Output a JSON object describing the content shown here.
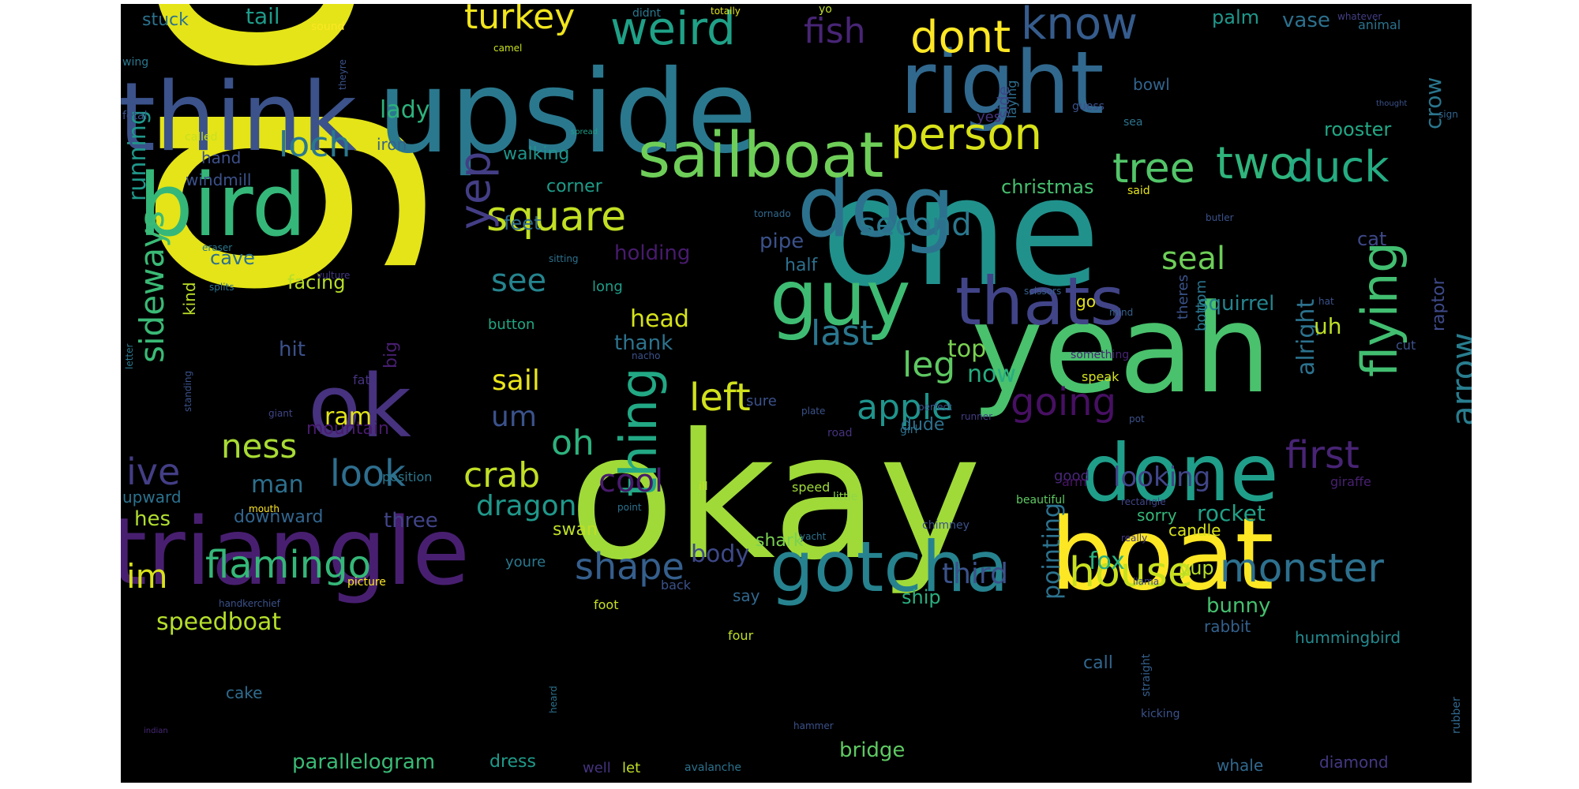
{
  "words": [
    {
      "text": "got",
      "color": "#e4e418"
    },
    {
      "text": "okay",
      "color": "#a0da39"
    },
    {
      "text": "one",
      "color": "#21918c"
    },
    {
      "text": "upside",
      "color": "#2a788e"
    },
    {
      "text": "yeah",
      "color": "#4ac16d"
    },
    {
      "text": "triangle",
      "color": "#481f70"
    },
    {
      "text": "think",
      "color": "#3b528b"
    },
    {
      "text": "right",
      "color": "#31688e"
    },
    {
      "text": "boat",
      "color": "#fde725"
    },
    {
      "text": "bird",
      "color": "#35b779"
    },
    {
      "text": "ok",
      "color": "#46327e"
    },
    {
      "text": "done",
      "color": "#1f9e89"
    },
    {
      "text": "dog",
      "color": "#2c728e"
    },
    {
      "text": "guy",
      "color": "#3fbc73"
    },
    {
      "text": "gotcha",
      "color": "#26828e"
    },
    {
      "text": "sailboat",
      "color": "#6ece58"
    },
    {
      "text": "thats",
      "color": "#414487"
    },
    {
      "text": "thing",
      "color": "#22a884"
    },
    {
      "text": "flying",
      "color": "#42be71"
    },
    {
      "text": "know",
      "color": "#365c8d"
    },
    {
      "text": "weird",
      "color": "#1fa187"
    },
    {
      "text": "dont",
      "color": "#fde725"
    },
    {
      "text": "person",
      "color": "#d8e219"
    },
    {
      "text": "square",
      "color": "#c2df23"
    },
    {
      "text": "yep",
      "color": "#433e85"
    },
    {
      "text": "turkey",
      "color": "#f1e51d"
    },
    {
      "text": "fish",
      "color": "#482576"
    },
    {
      "text": "two",
      "color": "#2fb47c"
    },
    {
      "text": "duck",
      "color": "#25ac82"
    },
    {
      "text": "tree",
      "color": "#52c569"
    },
    {
      "text": "loch",
      "color": "#2a788e"
    },
    {
      "text": "arrow",
      "color": "#287d8e"
    },
    {
      "text": "monster",
      "color": "#2d708e"
    },
    {
      "text": "house",
      "color": "#c8e020"
    },
    {
      "text": "apple",
      "color": "#1f948c"
    },
    {
      "text": "going",
      "color": "#471063"
    },
    {
      "text": "first",
      "color": "#482475"
    },
    {
      "text": "flamingo",
      "color": "#35b779"
    },
    {
      "text": "shape",
      "color": "#355f8d"
    },
    {
      "text": "look",
      "color": "#2e6e8e"
    },
    {
      "text": "crab",
      "color": "#c0df25"
    },
    {
      "text": "left",
      "color": "#d0e11c"
    },
    {
      "text": "last",
      "color": "#2a768e"
    },
    {
      "text": "leg",
      "color": "#5ec962"
    },
    {
      "text": "sideways",
      "color": "#3aba76"
    },
    {
      "text": "ness",
      "color": "#a8db34"
    },
    {
      "text": "ive",
      "color": "#433e85"
    },
    {
      "text": "im",
      "color": "#d8e219"
    },
    {
      "text": "cool",
      "color": "#481a6c"
    },
    {
      "text": "oh",
      "color": "#2db27d"
    },
    {
      "text": "seal",
      "color": "#6ece58"
    },
    {
      "text": "second",
      "color": "#2a788e"
    },
    {
      "text": "see",
      "color": "#25848e"
    },
    {
      "text": "sail",
      "color": "#eae51a"
    },
    {
      "text": "um",
      "color": "#3b528b"
    },
    {
      "text": "dragon",
      "color": "#1f988b"
    },
    {
      "text": "body",
      "color": "#3e4989"
    },
    {
      "text": "third",
      "color": "#3b528b"
    },
    {
      "text": "looking",
      "color": "#404688"
    },
    {
      "text": "alright",
      "color": "#2c728e"
    },
    {
      "text": "uh",
      "color": "#bddf26"
    },
    {
      "text": "running",
      "color": "#1f988b"
    },
    {
      "text": "rocket",
      "color": "#1fa187"
    },
    {
      "text": "speedboat",
      "color": "#b5de2b"
    },
    {
      "text": "top",
      "color": "#7ad151"
    },
    {
      "text": "now",
      "color": "#27ad81"
    },
    {
      "text": "fox",
      "color": "#2ab07f"
    },
    {
      "text": "man",
      "color": "#2d708e"
    },
    {
      "text": "big",
      "color": "#481f70"
    },
    {
      "text": "ram",
      "color": "#e2e418"
    },
    {
      "text": "lady",
      "color": "#2db27d"
    },
    {
      "text": "tail",
      "color": "#1e9b8a"
    },
    {
      "text": "pointing",
      "color": "#2c728e"
    },
    {
      "text": "bridge",
      "color": "#5ec962"
    },
    {
      "text": "parallelogram",
      "color": "#3aba76"
    },
    {
      "text": "christmas",
      "color": "#46c06f"
    },
    {
      "text": "head",
      "color": "#d5e21a"
    },
    {
      "text": "crow",
      "color": "#2a768e"
    },
    {
      "text": "vase",
      "color": "#2c718e"
    },
    {
      "text": "palm",
      "color": "#1f988b"
    },
    {
      "text": "rooster",
      "color": "#22a785"
    },
    {
      "text": "squirrel",
      "color": "#25848e"
    },
    {
      "text": "cat",
      "color": "#3e4989"
    },
    {
      "text": "raptor",
      "color": "#3e4a89"
    },
    {
      "text": "holding",
      "color": "#481b6d"
    },
    {
      "text": "cave",
      "color": "#2d708e"
    },
    {
      "text": "pipe",
      "color": "#3b528b"
    },
    {
      "text": "thank",
      "color": "#2c738e"
    },
    {
      "text": "feet",
      "color": "#2f6b8e"
    },
    {
      "text": "facing",
      "color": "#b8de29"
    },
    {
      "text": "corner",
      "color": "#1e9c89"
    },
    {
      "text": "walking",
      "color": "#1f948c"
    },
    {
      "text": "half",
      "color": "#2d708e"
    },
    {
      "text": "dude",
      "color": "#2d718e"
    },
    {
      "text": "hit",
      "color": "#3b518b"
    },
    {
      "text": "kind",
      "color": "#bade28"
    },
    {
      "text": "hand",
      "color": "#3c4f8a"
    },
    {
      "text": "iron",
      "color": "#33638d"
    },
    {
      "text": "windmill",
      "color": "#3b528b"
    },
    {
      "text": "stuck",
      "color": "#2c728e"
    },
    {
      "text": "three",
      "color": "#414487"
    },
    {
      "text": "downward",
      "color": "#32658e"
    },
    {
      "text": "upward",
      "color": "#2c728e"
    },
    {
      "text": "hes",
      "color": "#b0dd2f"
    },
    {
      "text": "swan",
      "color": "#bddf26"
    },
    {
      "text": "shark",
      "color": "#7ad151"
    },
    {
      "text": "bunny",
      "color": "#46c06f"
    },
    {
      "text": "yup",
      "color": "#b5de2b"
    },
    {
      "text": "mountain",
      "color": "#481b6d"
    },
    {
      "text": "cake",
      "color": "#2f6c8e"
    },
    {
      "text": "dress",
      "color": "#1f9a8a"
    },
    {
      "text": "ship",
      "color": "#29af7f"
    },
    {
      "text": "call",
      "color": "#31678e"
    },
    {
      "text": "hummingbird",
      "color": "#23898e"
    },
    {
      "text": "bottom",
      "color": "#2b748e"
    },
    {
      "text": "theres",
      "color": "#3a548c"
    },
    {
      "text": "go",
      "color": "#e5e419"
    },
    {
      "text": "candle",
      "color": "#d8e219"
    },
    {
      "text": "sorry",
      "color": "#35b779"
    },
    {
      "text": "rabbit",
      "color": "#34618d"
    },
    {
      "text": "whale",
      "color": "#31688e"
    },
    {
      "text": "diamond",
      "color": "#453882"
    },
    {
      "text": "button",
      "color": "#22a884"
    },
    {
      "text": "sure",
      "color": "#3b528b"
    },
    {
      "text": "speak",
      "color": "#d5e21a"
    },
    {
      "text": "good",
      "color": "#482878"
    },
    {
      "text": "fat",
      "color": "#46337f"
    },
    {
      "text": "long",
      "color": "#1f9e89"
    },
    {
      "text": "say",
      "color": "#31688e"
    },
    {
      "text": "four",
      "color": "#c2df23"
    },
    {
      "text": "speed",
      "color": "#a0da39"
    },
    {
      "text": "little",
      "color": "#8ed645"
    },
    {
      "text": "giraffe",
      "color": "#482071"
    },
    {
      "text": "cut",
      "color": "#3b528b"
    },
    {
      "text": "arm",
      "color": "#481467"
    },
    {
      "text": "wing",
      "color": "#2a788e"
    },
    {
      "text": "fetal",
      "color": "#3b528b"
    },
    {
      "text": "called",
      "color": "#c8e020"
    },
    {
      "text": "bowl",
      "color": "#32648e"
    },
    {
      "text": "sea",
      "color": "#2c738e"
    },
    {
      "text": "laying",
      "color": "#2e6e8e"
    },
    {
      "text": "side",
      "color": "#3e4989"
    },
    {
      "text": "yes",
      "color": "#46337f"
    },
    {
      "text": "guess",
      "color": "#3b518b"
    },
    {
      "text": "sign",
      "color": "#32648e"
    },
    {
      "text": "animal",
      "color": "#2c728e"
    },
    {
      "text": "whatever",
      "color": "#433e85"
    },
    {
      "text": "totally",
      "color": "#e2e418"
    },
    {
      "text": "didnt",
      "color": "#2a788e"
    },
    {
      "text": "yo",
      "color": "#bddf26"
    },
    {
      "text": "camel",
      "color": "#c8e020"
    },
    {
      "text": "sound",
      "color": "#fde725"
    },
    {
      "text": "theyre",
      "color": "#3b528b"
    },
    {
      "text": "spread",
      "color": "#1f9e89"
    },
    {
      "text": "sitting",
      "color": "#2c728e"
    },
    {
      "text": "tornado",
      "color": "#31688e"
    },
    {
      "text": "butler",
      "color": "#3b528b"
    },
    {
      "text": "eraser",
      "color": "#2a788e"
    },
    {
      "text": "splits",
      "color": "#2c728e"
    },
    {
      "text": "vulture",
      "color": "#453882"
    },
    {
      "text": "scissors",
      "color": "#355f8d"
    },
    {
      "text": "hat",
      "color": "#3b528b"
    },
    {
      "text": "mind",
      "color": "#34618d"
    },
    {
      "text": "something",
      "color": "#482475"
    },
    {
      "text": "nacho",
      "color": "#3b528b"
    },
    {
      "text": "letter",
      "color": "#2a788e"
    },
    {
      "text": "standing",
      "color": "#3b528b"
    },
    {
      "text": "giant",
      "color": "#404688"
    },
    {
      "text": "perfect",
      "color": "#3b528b"
    },
    {
      "text": "girl",
      "color": "#2c728e"
    },
    {
      "text": "runner",
      "color": "#433e85"
    },
    {
      "text": "plate",
      "color": "#3b528b"
    },
    {
      "text": "road",
      "color": "#46327e"
    },
    {
      "text": "pot",
      "color": "#3b528b"
    },
    {
      "text": "position",
      "color": "#2a788e"
    },
    {
      "text": "ill",
      "color": "#c2df23"
    },
    {
      "text": "mouth",
      "color": "#fde725"
    },
    {
      "text": "point",
      "color": "#2c728e"
    },
    {
      "text": "beautiful",
      "color": "#5ec962"
    },
    {
      "text": "rectangle",
      "color": "#404688"
    },
    {
      "text": "chimney",
      "color": "#3b528b"
    },
    {
      "text": "yacht",
      "color": "#2c728e"
    },
    {
      "text": "really",
      "color": "#453882"
    },
    {
      "text": "youre",
      "color": "#2a788e"
    },
    {
      "text": "picture",
      "color": "#fde725"
    },
    {
      "text": "back",
      "color": "#3b528b"
    },
    {
      "text": "llama",
      "color": "#404688"
    },
    {
      "text": "handkerchief",
      "color": "#3b528b"
    },
    {
      "text": "foot",
      "color": "#c8e020"
    },
    {
      "text": "straight",
      "color": "#355f8d"
    },
    {
      "text": "heard",
      "color": "#2c728e"
    },
    {
      "text": "kicking",
      "color": "#3b528b"
    },
    {
      "text": "rubber",
      "color": "#31688e"
    },
    {
      "text": "well",
      "color": "#46327e"
    },
    {
      "text": "let",
      "color": "#c2df23"
    },
    {
      "text": "avalanche",
      "color": "#2c728e"
    },
    {
      "text": "hammer",
      "color": "#3b528b"
    },
    {
      "text": "indian",
      "color": "#482878"
    },
    {
      "text": "thought",
      "color": "#3b528b"
    },
    {
      "text": "said",
      "color": "#e5e419"
    }
  ]
}
